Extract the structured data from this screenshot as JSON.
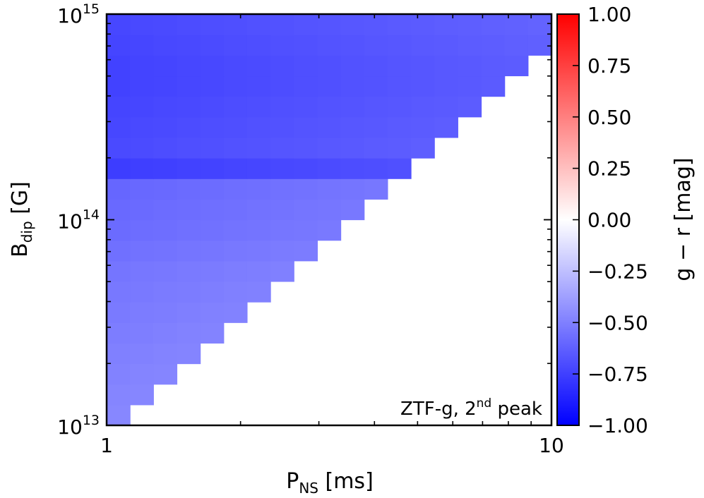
{
  "chart_data": {
    "type": "heatmap",
    "title": "",
    "annotation": {
      "text": "ZTF-g, 2",
      "sup": "nd",
      "suffix": " peak"
    },
    "xlabel": {
      "main": "P",
      "sub": "NS",
      "unit": " [ms]"
    },
    "ylabel": {
      "main": "B",
      "sub": "dip",
      "unit": " [G]"
    },
    "x_scale": "log",
    "y_scale": "log",
    "xlim": [
      1,
      10
    ],
    "ylim": [
      10000000000000.0,
      1000000000000000.0
    ],
    "x_ticks": [
      {
        "value": 1,
        "label": "1"
      },
      {
        "value": 10,
        "label": "10"
      }
    ],
    "y_ticks": [
      {
        "value": 10000000000000.0,
        "base": "10",
        "exp": "13"
      },
      {
        "value": 100000000000000.0,
        "base": "10",
        "exp": "14"
      },
      {
        "value": 1000000000000000.0,
        "base": "10",
        "exp": "15"
      }
    ],
    "colorbar": {
      "label": "g − r [mag]",
      "vmin": -1.0,
      "vmax": 1.0,
      "ticks": [
        "1.00",
        "0.75",
        "0.50",
        "0.25",
        "0.00",
        "−0.25",
        "−0.50",
        "−0.75",
        "−1.00"
      ],
      "tick_values": [
        1.0,
        0.75,
        0.5,
        0.25,
        0.0,
        -0.25,
        -0.5,
        -0.75,
        -1.0
      ],
      "cmap": "bwr",
      "colors": {
        "low": "#0000ff",
        "mid": "#ffffff",
        "high": "#ff0000"
      }
    },
    "grid": {
      "n_x": 19,
      "n_y": 20,
      "log_p_step": 0.05263,
      "log_b_step": 0.1,
      "mask_rule": "cell filled when column index ≤ row index (upper-left triangle)",
      "values_note": "g−r per row of B (row 0 = 1e13 bottom), estimated",
      "row_values": [
        -0.47,
        -0.48,
        -0.49,
        -0.5,
        -0.51,
        -0.52,
        -0.53,
        -0.54,
        -0.56,
        -0.58,
        -0.59,
        -0.6,
        -0.76,
        -0.71,
        -0.72,
        -0.73,
        -0.74,
        -0.74,
        -0.73,
        -0.72
      ],
      "column_drift": 0.006
    }
  }
}
